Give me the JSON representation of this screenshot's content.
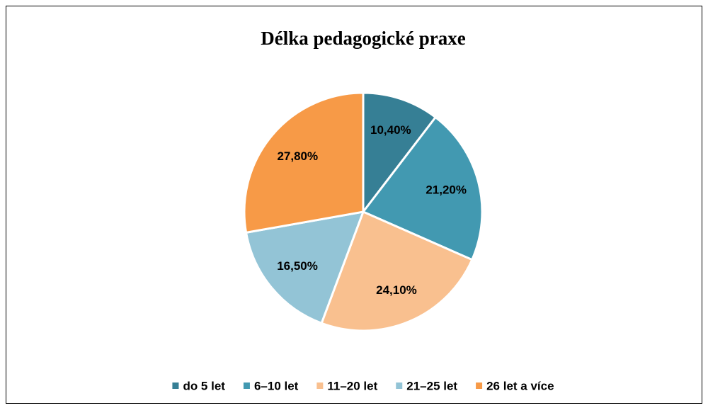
{
  "chart_data": {
    "type": "pie",
    "title": "Délka pedagogické praxe",
    "categories": [
      "do 5 let",
      "6–10 let",
      "11–20 let",
      "21–25 let",
      "26 let a více"
    ],
    "values": [
      10.4,
      21.2,
      24.1,
      16.5,
      27.8
    ],
    "value_labels": [
      "10,40%",
      "21,20%",
      "24,10%",
      "16,50%",
      "27,80%"
    ],
    "colors": [
      "#367f95",
      "#4299b1",
      "#f9c08f",
      "#93c4d6",
      "#f79a47"
    ],
    "legend": "bottom"
  }
}
